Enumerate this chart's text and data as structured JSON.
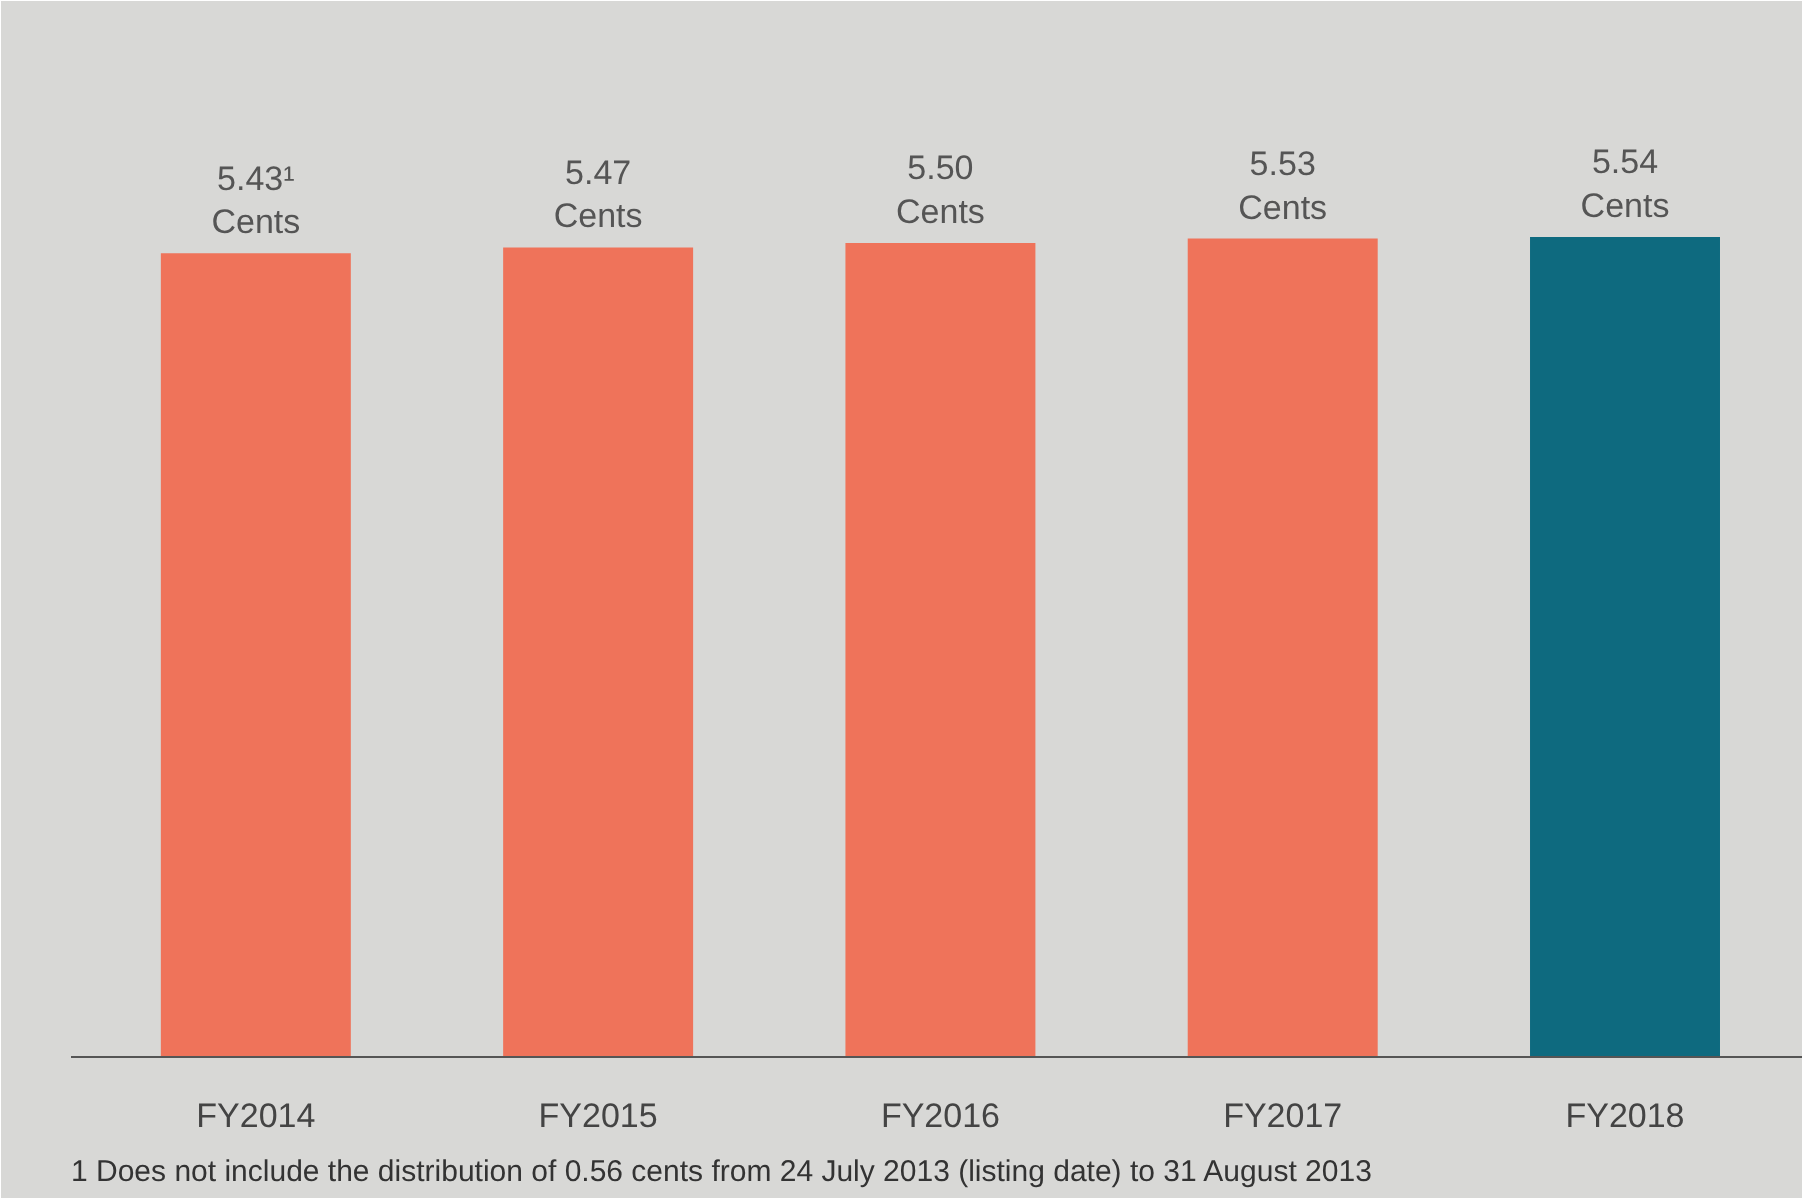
{
  "chart_data": {
    "type": "bar",
    "categories": [
      "FY2014",
      "FY2015",
      "FY2016",
      "FY2017",
      "FY2018"
    ],
    "values": [
      5.43,
      5.47,
      5.5,
      5.53,
      5.54
    ],
    "colors": [
      "#ef735a",
      "#ef735a",
      "#ef735a",
      "#ef735a",
      "#0e6a7f"
    ],
    "value_labels": [
      "5.43¹\nCents",
      "5.47\nCents",
      "5.50\nCents",
      "5.53\nCents",
      "5.54\nCents"
    ],
    "ylim": [
      0,
      7
    ],
    "grid": false,
    "annotations": [
      "1     Does not include the distribution of 0.56 cents from 24 July 2013 (listing date) to 31 August 2013"
    ]
  }
}
